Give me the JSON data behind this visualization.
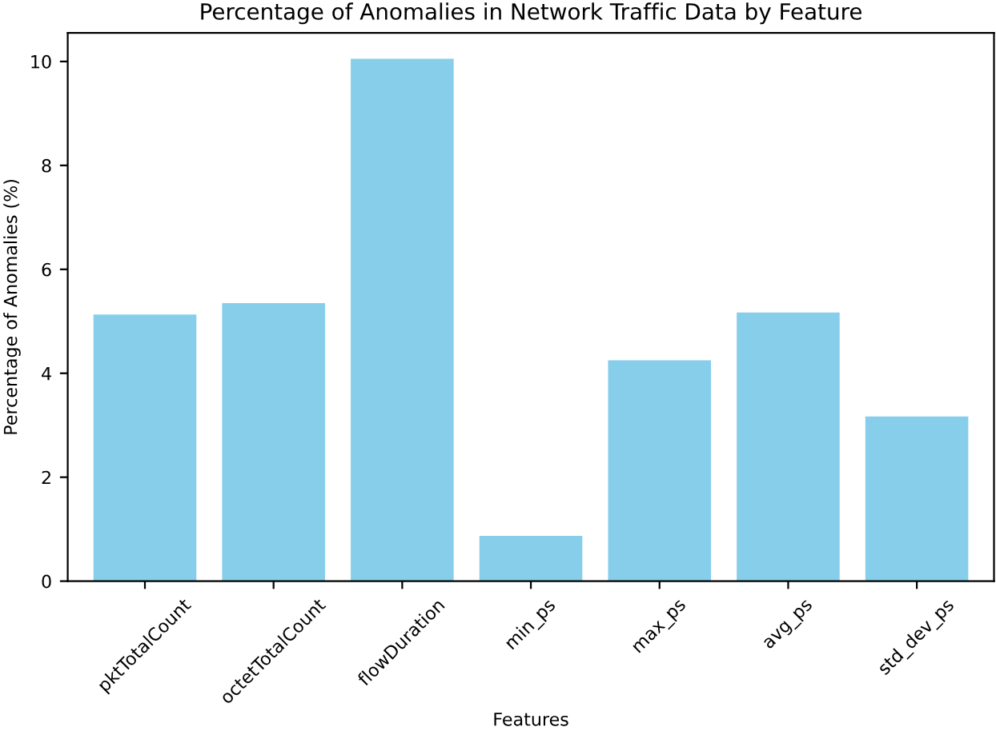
{
  "chart_data": {
    "type": "bar",
    "title": "Percentage of Anomalies in Network Traffic Data by Feature",
    "xlabel": "Features",
    "ylabel": "Percentage of Anomalies (%)",
    "categories": [
      "pktTotalCount",
      "octetTotalCount",
      "flowDuration",
      "min_ps",
      "max_ps",
      "avg_ps",
      "std_dev_ps"
    ],
    "values": [
      5.13,
      5.35,
      10.05,
      0.87,
      4.25,
      5.17,
      3.17
    ],
    "color": "#87ceeb",
    "ylim": [
      0,
      10.55
    ],
    "yticks": [
      0,
      2,
      4,
      6,
      8,
      10
    ],
    "grid": false,
    "legend": false
  }
}
